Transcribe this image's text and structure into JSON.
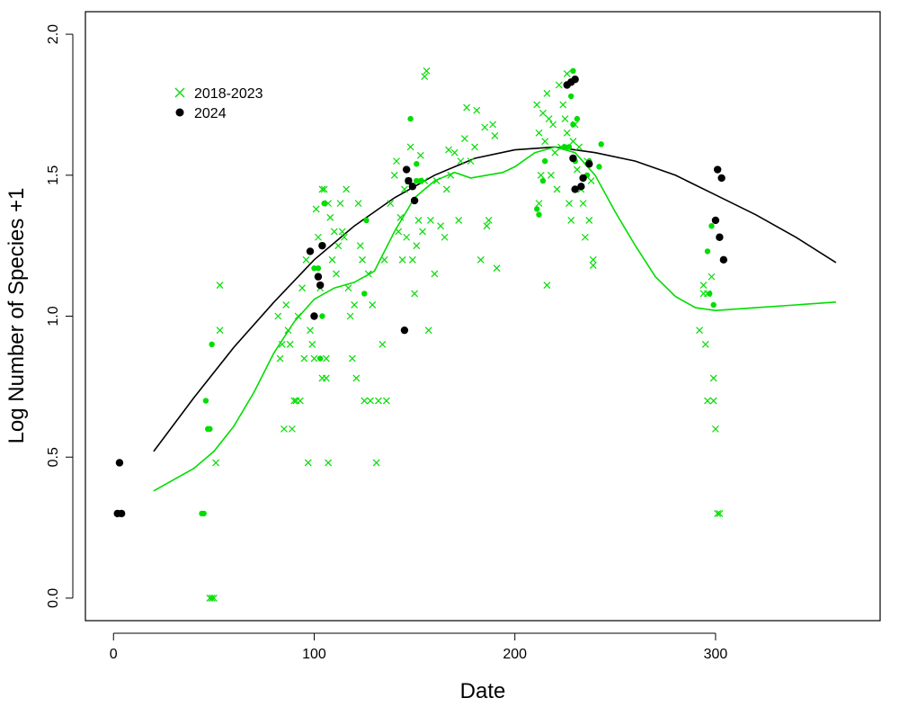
{
  "chart_data": {
    "type": "scatter",
    "xlabel": "Date",
    "ylabel": "Log Number of Species +1",
    "xlim": [
      -14,
      382
    ],
    "ylim": [
      -0.08,
      2.08
    ],
    "xticks": [
      0,
      100,
      200,
      300
    ],
    "yticks": [
      0.0,
      0.5,
      1.0,
      1.5,
      2.0
    ],
    "xtick_labels": [
      "0",
      "100",
      "200",
      "300"
    ],
    "ytick_labels": [
      "0.0",
      "0.5",
      "1.0",
      "1.5",
      "2.0"
    ],
    "legend": {
      "position": "top-left",
      "entries": [
        {
          "label": "2018-2023",
          "marker": "x",
          "color": "#00dd00"
        },
        {
          "label": "2024",
          "marker": "filled-circle",
          "color": "#000000"
        }
      ]
    },
    "series": [
      {
        "name": "2018-2023",
        "marker": "x",
        "color": "#00dd00",
        "points": [
          [
            48,
            0.0
          ],
          [
            49,
            0.0
          ],
          [
            50,
            0.0
          ],
          [
            51,
            0.48
          ],
          [
            53,
            0.95
          ],
          [
            53,
            1.11
          ],
          [
            82,
            1.0
          ],
          [
            83,
            0.85
          ],
          [
            84,
            0.9
          ],
          [
            85,
            0.6
          ],
          [
            86,
            1.04
          ],
          [
            87,
            0.95
          ],
          [
            88,
            0.9
          ],
          [
            89,
            0.6
          ],
          [
            90,
            0.7
          ],
          [
            91,
            0.7
          ],
          [
            92,
            1.0
          ],
          [
            93,
            0.7
          ],
          [
            94,
            1.1
          ],
          [
            95,
            0.85
          ],
          [
            96,
            1.2
          ],
          [
            97,
            0.48
          ],
          [
            98,
            0.95
          ],
          [
            99,
            0.9
          ],
          [
            100,
            0.85
          ],
          [
            101,
            1.38
          ],
          [
            102,
            1.28
          ],
          [
            103,
            1.1
          ],
          [
            104,
            1.45
          ],
          [
            104,
            0.78
          ],
          [
            105,
            1.45
          ],
          [
            106,
            0.85
          ],
          [
            106,
            0.78
          ],
          [
            107,
            1.4
          ],
          [
            107,
            0.48
          ],
          [
            108,
            1.35
          ],
          [
            109,
            1.2
          ],
          [
            110,
            1.3
          ],
          [
            111,
            1.15
          ],
          [
            112,
            1.25
          ],
          [
            113,
            1.4
          ],
          [
            114,
            1.3
          ],
          [
            115,
            1.28
          ],
          [
            116,
            1.45
          ],
          [
            117,
            1.1
          ],
          [
            118,
            1.0
          ],
          [
            119,
            0.85
          ],
          [
            120,
            1.04
          ],
          [
            121,
            0.78
          ],
          [
            122,
            1.4
          ],
          [
            123,
            1.25
          ],
          [
            124,
            1.2
          ],
          [
            125,
            0.7
          ],
          [
            127,
            1.15
          ],
          [
            128,
            0.7
          ],
          [
            129,
            1.04
          ],
          [
            131,
            0.48
          ],
          [
            132,
            0.7
          ],
          [
            134,
            0.9
          ],
          [
            135,
            1.2
          ],
          [
            136,
            0.7
          ],
          [
            138,
            1.4
          ],
          [
            140,
            1.5
          ],
          [
            141,
            1.55
          ],
          [
            142,
            1.3
          ],
          [
            143,
            1.35
          ],
          [
            144,
            1.2
          ],
          [
            145,
            1.45
          ],
          [
            146,
            1.28
          ],
          [
            147,
            1.48
          ],
          [
            148,
            1.6
          ],
          [
            149,
            1.2
          ],
          [
            150,
            1.08
          ],
          [
            151,
            1.25
          ],
          [
            152,
            1.34
          ],
          [
            153,
            1.57
          ],
          [
            154,
            1.3
          ],
          [
            155,
            1.48
          ],
          [
            155,
            1.85
          ],
          [
            156,
            1.87
          ],
          [
            157,
            0.95
          ],
          [
            158,
            1.34
          ],
          [
            160,
            1.15
          ],
          [
            161,
            1.48
          ],
          [
            163,
            1.32
          ],
          [
            165,
            1.28
          ],
          [
            166,
            1.45
          ],
          [
            167,
            1.59
          ],
          [
            168,
            1.5
          ],
          [
            170,
            1.58
          ],
          [
            172,
            1.34
          ],
          [
            173,
            1.55
          ],
          [
            175,
            1.63
          ],
          [
            176,
            1.74
          ],
          [
            178,
            1.55
          ],
          [
            180,
            1.6
          ],
          [
            181,
            1.73
          ],
          [
            183,
            1.2
          ],
          [
            185,
            1.67
          ],
          [
            186,
            1.32
          ],
          [
            187,
            1.34
          ],
          [
            189,
            1.68
          ],
          [
            190,
            1.64
          ],
          [
            191,
            1.17
          ],
          [
            211,
            1.75
          ],
          [
            212,
            1.4
          ],
          [
            212,
            1.65
          ],
          [
            213,
            1.5
          ],
          [
            214,
            1.72
          ],
          [
            215,
            1.62
          ],
          [
            216,
            1.11
          ],
          [
            216,
            1.79
          ],
          [
            217,
            1.7
          ],
          [
            218,
            1.5
          ],
          [
            219,
            1.68
          ],
          [
            220,
            1.58
          ],
          [
            221,
            1.45
          ],
          [
            222,
            1.82
          ],
          [
            223,
            1.6
          ],
          [
            224,
            1.75
          ],
          [
            225,
            1.7
          ],
          [
            226,
            1.65
          ],
          [
            226,
            1.86
          ],
          [
            227,
            1.4
          ],
          [
            228,
            1.34
          ],
          [
            229,
            1.62
          ],
          [
            230,
            1.68
          ],
          [
            231,
            1.52
          ],
          [
            232,
            1.6
          ],
          [
            233,
            1.45
          ],
          [
            234,
            1.4
          ],
          [
            235,
            1.28
          ],
          [
            236,
            1.55
          ],
          [
            237,
            1.34
          ],
          [
            238,
            1.48
          ],
          [
            239,
            1.2
          ],
          [
            239,
            1.18
          ],
          [
            292,
            0.95
          ],
          [
            294,
            1.11
          ],
          [
            294,
            1.08
          ],
          [
            295,
            0.9
          ],
          [
            296,
            1.08
          ],
          [
            296,
            0.7
          ],
          [
            298,
            1.14
          ],
          [
            299,
            0.7
          ],
          [
            299,
            0.78
          ],
          [
            300,
            0.6
          ],
          [
            301,
            0.3
          ],
          [
            302,
            0.3
          ]
        ]
      },
      {
        "name": "2018-2023",
        "marker": "filled-circle",
        "color": "#00dd00",
        "points": [
          [
            44,
            0.3
          ],
          [
            45,
            0.3
          ],
          [
            46,
            0.7
          ],
          [
            47,
            0.6
          ],
          [
            48,
            0.6
          ],
          [
            49,
            0.9
          ],
          [
            100,
            1.17
          ],
          [
            102,
            1.17
          ],
          [
            103,
            0.85
          ],
          [
            104,
            1.0
          ],
          [
            105,
            1.4
          ],
          [
            125,
            1.08
          ],
          [
            126,
            1.34
          ],
          [
            148,
            1.7
          ],
          [
            151,
            1.54
          ],
          [
            151,
            1.48
          ],
          [
            153,
            1.48
          ],
          [
            211,
            1.38
          ],
          [
            212,
            1.36
          ],
          [
            214,
            1.48
          ],
          [
            215,
            1.55
          ],
          [
            225,
            1.6
          ],
          [
            227,
            1.6
          ],
          [
            228,
            1.78
          ],
          [
            229,
            1.87
          ],
          [
            229,
            1.68
          ],
          [
            230,
            1.55
          ],
          [
            231,
            1.7
          ],
          [
            236,
            1.5
          ],
          [
            237,
            1.55
          ],
          [
            242,
            1.53
          ],
          [
            243,
            1.61
          ],
          [
            296,
            1.23
          ],
          [
            297,
            1.08
          ],
          [
            298,
            1.32
          ],
          [
            299,
            1.04
          ]
        ]
      },
      {
        "name": "2024",
        "marker": "filled-circle",
        "color": "#000000",
        "points": [
          [
            2,
            0.3
          ],
          [
            4,
            0.3
          ],
          [
            3,
            0.48
          ],
          [
            98,
            1.23
          ],
          [
            100,
            1.0
          ],
          [
            102,
            1.14
          ],
          [
            103,
            1.11
          ],
          [
            104,
            1.25
          ],
          [
            145,
            0.95
          ],
          [
            146,
            1.52
          ],
          [
            147,
            1.48
          ],
          [
            149,
            1.46
          ],
          [
            150,
            1.41
          ],
          [
            226,
            1.82
          ],
          [
            228,
            1.83
          ],
          [
            230,
            1.84
          ],
          [
            229,
            1.56
          ],
          [
            230,
            1.45
          ],
          [
            233,
            1.46
          ],
          [
            234,
            1.49
          ],
          [
            237,
            1.54
          ],
          [
            300,
            1.34
          ],
          [
            301,
            1.52
          ],
          [
            302,
            1.28
          ],
          [
            303,
            1.49
          ],
          [
            304,
            1.2
          ]
        ]
      }
    ],
    "curves": [
      {
        "name": "fit 2024",
        "color": "#000000",
        "points": [
          [
            20,
            0.52
          ],
          [
            40,
            0.71
          ],
          [
            60,
            0.89
          ],
          [
            80,
            1.05
          ],
          [
            100,
            1.2
          ],
          [
            120,
            1.32
          ],
          [
            140,
            1.42
          ],
          [
            160,
            1.5
          ],
          [
            180,
            1.56
          ],
          [
            200,
            1.59
          ],
          [
            220,
            1.6
          ],
          [
            240,
            1.58
          ],
          [
            260,
            1.55
          ],
          [
            280,
            1.5
          ],
          [
            300,
            1.43
          ],
          [
            320,
            1.36
          ],
          [
            340,
            1.28
          ],
          [
            360,
            1.19
          ]
        ]
      },
      {
        "name": "fit 2018-2023",
        "color": "#00dd00",
        "points": [
          [
            20,
            0.38
          ],
          [
            30,
            0.42
          ],
          [
            40,
            0.46
          ],
          [
            50,
            0.52
          ],
          [
            60,
            0.61
          ],
          [
            70,
            0.73
          ],
          [
            80,
            0.87
          ],
          [
            90,
            0.98
          ],
          [
            100,
            1.06
          ],
          [
            110,
            1.1
          ],
          [
            120,
            1.12
          ],
          [
            130,
            1.16
          ],
          [
            140,
            1.3
          ],
          [
            150,
            1.42
          ],
          [
            160,
            1.48
          ],
          [
            170,
            1.51
          ],
          [
            178,
            1.49
          ],
          [
            186,
            1.5
          ],
          [
            194,
            1.51
          ],
          [
            200,
            1.53
          ],
          [
            210,
            1.58
          ],
          [
            220,
            1.6
          ],
          [
            230,
            1.58
          ],
          [
            240,
            1.5
          ],
          [
            250,
            1.37
          ],
          [
            260,
            1.25
          ],
          [
            270,
            1.14
          ],
          [
            280,
            1.07
          ],
          [
            290,
            1.03
          ],
          [
            300,
            1.02
          ],
          [
            320,
            1.03
          ],
          [
            340,
            1.04
          ],
          [
            360,
            1.05
          ]
        ]
      }
    ]
  }
}
